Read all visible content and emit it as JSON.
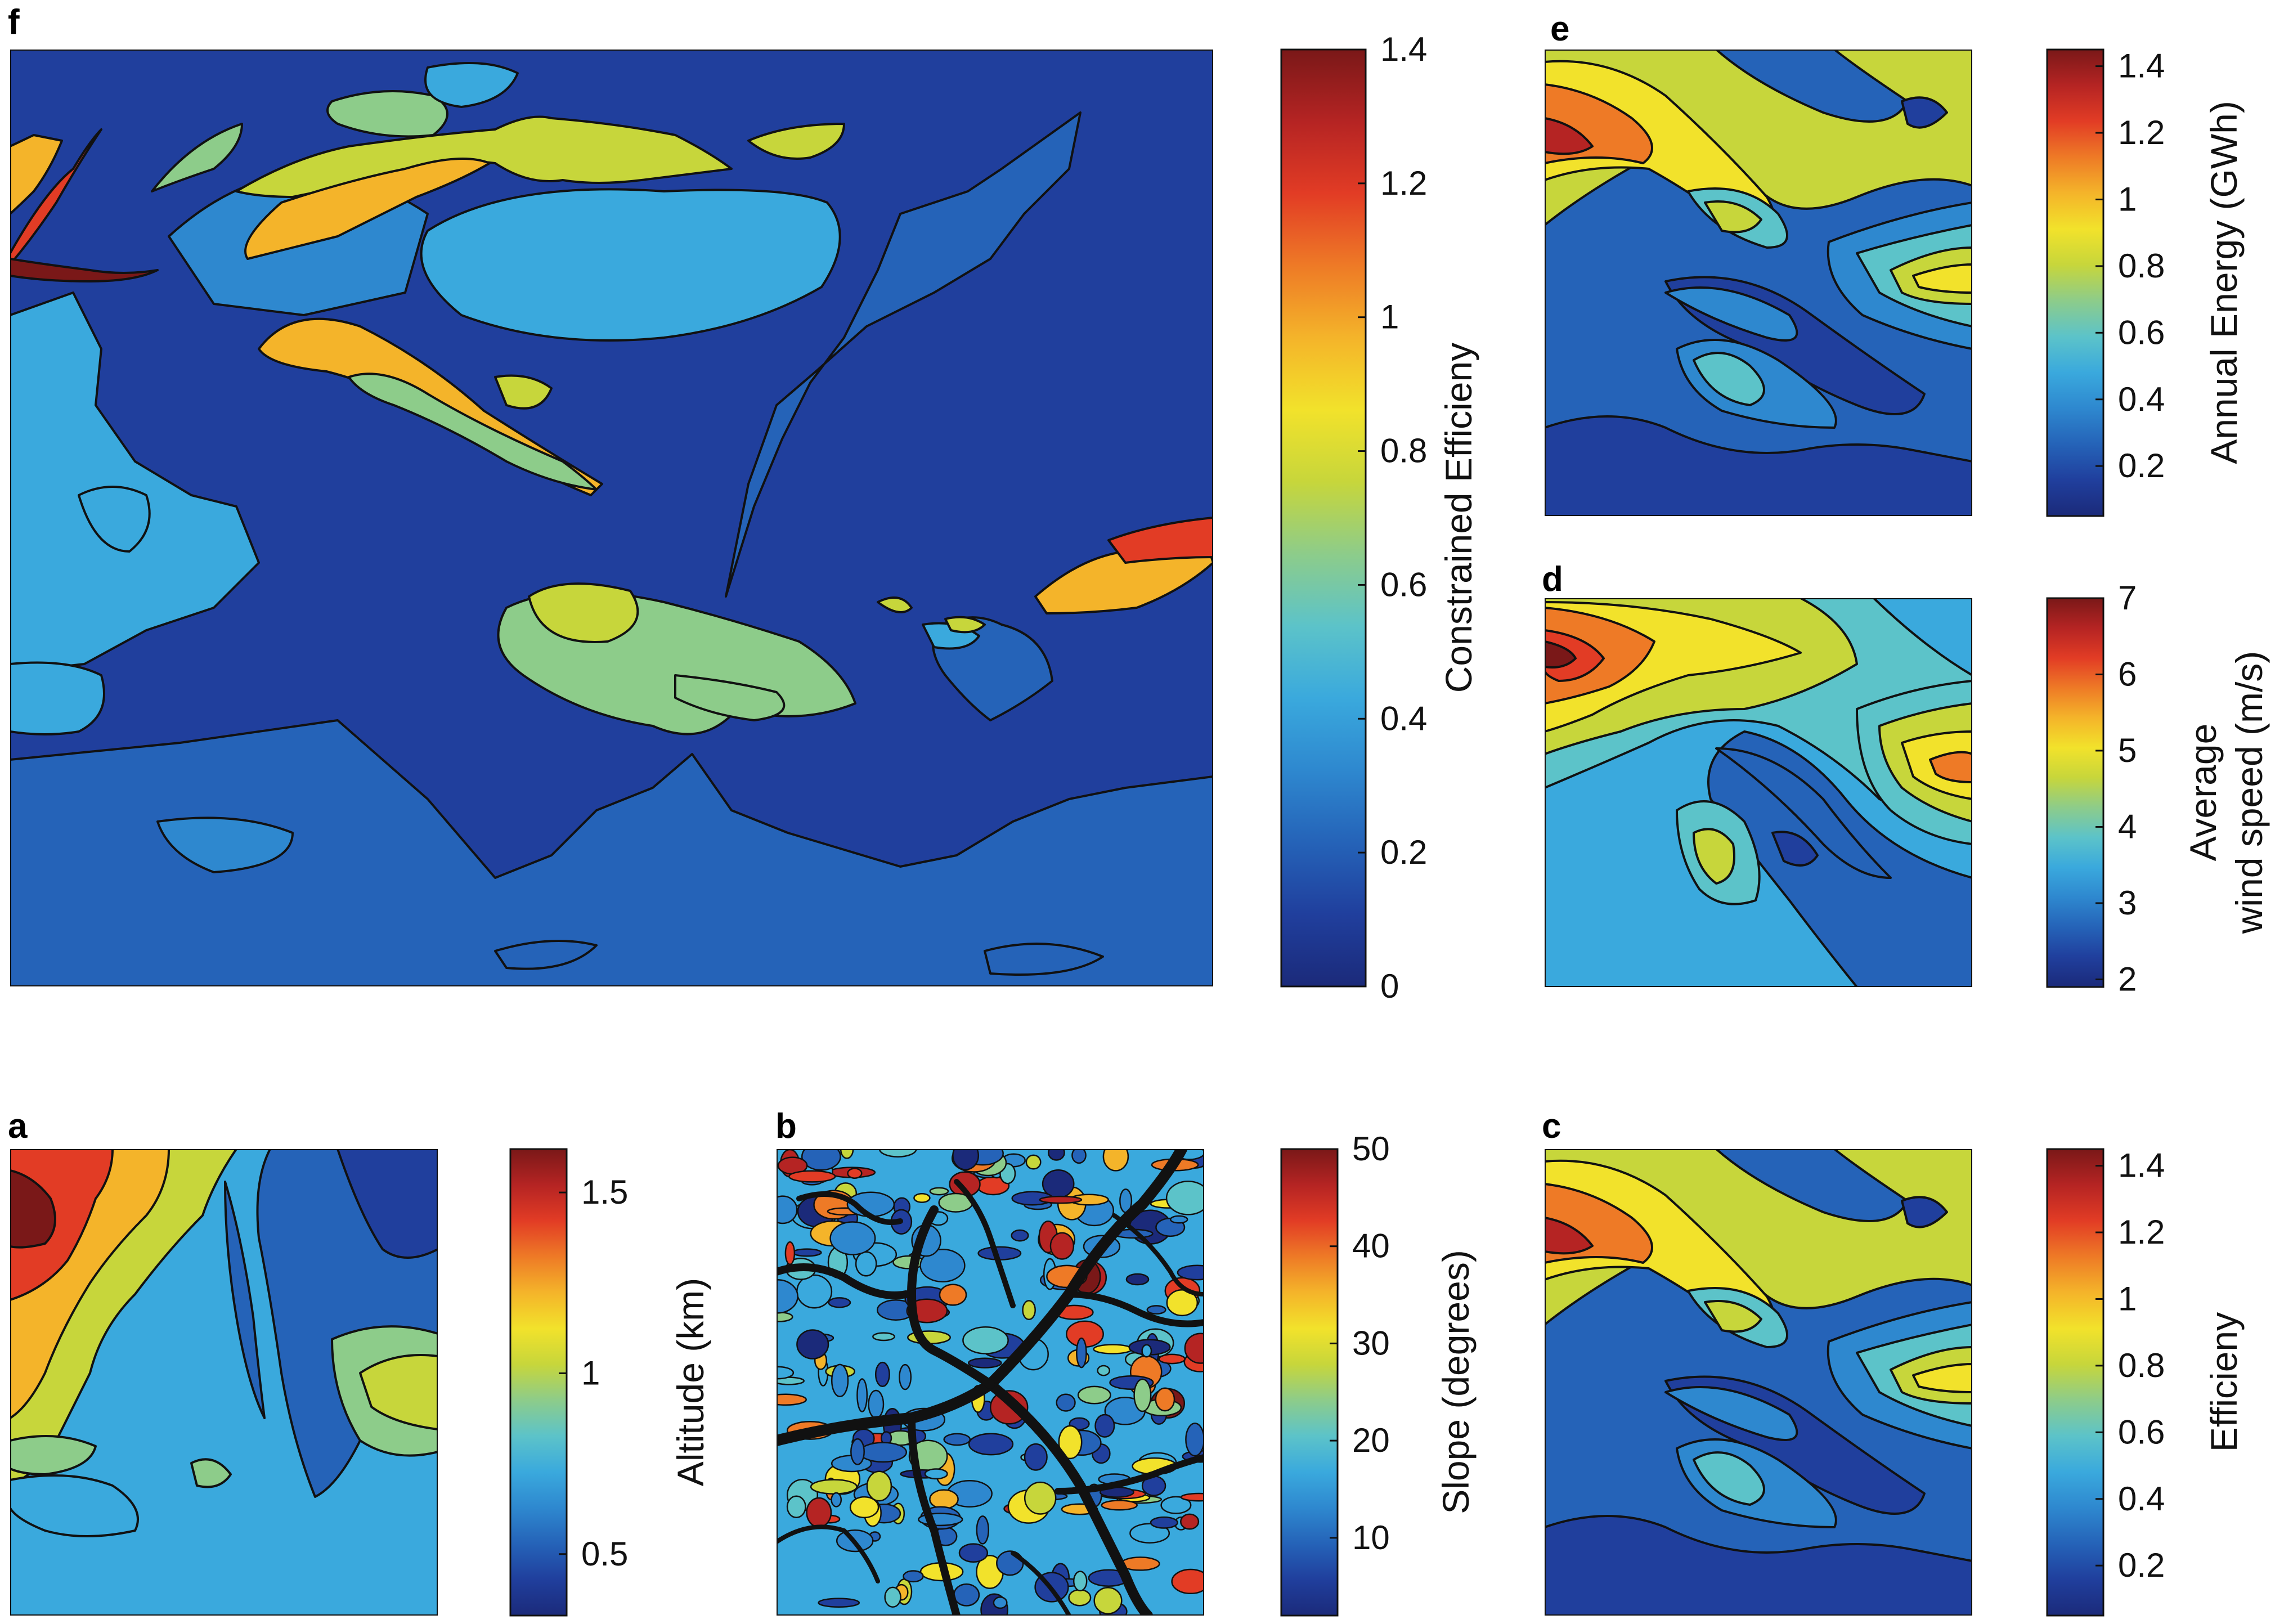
{
  "colormap": [
    "#1b2a7a",
    "#203f9d",
    "#2563b8",
    "#2e88cf",
    "#3aa9dd",
    "#5cc3c9",
    "#8dcc8a",
    "#c7d63b",
    "#f2e22b",
    "#f4b42a",
    "#ee7a26",
    "#e23c25",
    "#b52423",
    "#7a1818"
  ],
  "chart_data": [
    {
      "id": "f",
      "type": "heatmap",
      "panel_label": "f",
      "colorbar_label": "Constrained Efficieny",
      "colorbar_range": [
        0,
        1.4
      ],
      "colorbar_ticks": [
        {
          "value": 0,
          "label": "0"
        },
        {
          "value": 0.2,
          "label": "0.2"
        },
        {
          "value": 0.4,
          "label": "0.4"
        },
        {
          "value": 0.6,
          "label": "0.6"
        },
        {
          "value": 0.8,
          "label": "0.8"
        },
        {
          "value": 1,
          "label": "1"
        },
        {
          "value": 1.2,
          "label": "1.2"
        },
        {
          "value": 1.4,
          "label": "1.4"
        }
      ],
      "background_level": 0.06,
      "regions": [
        {
          "level": 0.22
        },
        {
          "level": 0.44
        },
        {
          "level": 0.3
        },
        {
          "level": 0.44
        },
        {
          "level": 0.22
        },
        {
          "level": 0.62
        },
        {
          "level": 0.8
        },
        {
          "level": 0.95
        },
        {
          "level": 1.22
        },
        {
          "level": 0.62
        },
        {
          "level": 0.8
        },
        {
          "level": 0.95
        },
        {
          "level": 0.8
        },
        {
          "level": 0.62
        },
        {
          "level": 0.44
        },
        {
          "level": 0.8
        },
        {
          "level": 0.95
        },
        {
          "level": 1.22
        },
        {
          "level": 0.22
        },
        {
          "level": 0.44
        },
        {
          "level": 0.95
        },
        {
          "level": 1.4
        },
        {
          "level": 0.62
        },
        {
          "level": 0.44
        },
        {
          "level": 0.8
        },
        {
          "level": 0.62
        },
        {
          "level": 0.22
        },
        {
          "level": 0.22
        },
        {
          "level": 0.44
        },
        {
          "level": 0.8
        },
        {
          "level": 0.3
        }
      ]
    },
    {
      "id": "e",
      "type": "heatmap",
      "panel_label": "e",
      "colorbar_label": "Annual Energy (GWh)",
      "colorbar_range": [
        0.05,
        1.45
      ],
      "colorbar_ticks": [
        {
          "value": 0.2,
          "label": "0.2"
        },
        {
          "value": 0.4,
          "label": "0.4"
        },
        {
          "value": 0.6,
          "label": "0.6"
        },
        {
          "value": 0.8,
          "label": "0.8"
        },
        {
          "value": 1,
          "label": "1"
        },
        {
          "value": 1.2,
          "label": "1.2"
        },
        {
          "value": 1.4,
          "label": "1.4"
        }
      ],
      "background_level": 0.28,
      "regions": [
        {
          "level": 0.12
        },
        {
          "level": 0.12
        },
        {
          "level": 0.4
        },
        {
          "level": 0.55
        },
        {
          "level": 0.75
        },
        {
          "level": 0.95
        },
        {
          "level": 1.15
        },
        {
          "level": 1.35
        },
        {
          "level": 0.4
        },
        {
          "level": 0.55
        },
        {
          "level": 0.75
        },
        {
          "level": 0.95
        },
        {
          "level": 0.4
        },
        {
          "level": 0.55
        },
        {
          "level": 0.75
        },
        {
          "level": 0.12
        }
      ]
    },
    {
      "id": "d",
      "type": "heatmap",
      "panel_label": "d",
      "colorbar_label_lines": [
        "Average",
        "wind speed (m/s)"
      ],
      "colorbar_range": [
        1.9,
        7.0
      ],
      "colorbar_ticks": [
        {
          "value": 2,
          "label": "2"
        },
        {
          "value": 3,
          "label": "3"
        },
        {
          "value": 4,
          "label": "4"
        },
        {
          "value": 5,
          "label": "5"
        },
        {
          "value": 6,
          "label": "6"
        },
        {
          "value": 7,
          "label": "7"
        }
      ],
      "background_level": 3.4,
      "regions": [
        {
          "level": 2.8
        },
        {
          "level": 4.0
        },
        {
          "level": 4.6
        },
        {
          "level": 5.2
        },
        {
          "level": 5.8
        },
        {
          "level": 6.4
        },
        {
          "level": 6.9
        },
        {
          "level": 4.0
        },
        {
          "level": 4.6
        },
        {
          "level": 5.2
        },
        {
          "level": 5.8
        },
        {
          "level": 4.0
        },
        {
          "level": 4.6
        },
        {
          "level": 2.8
        },
        {
          "level": 2.3
        }
      ]
    },
    {
      "id": "c",
      "type": "heatmap",
      "panel_label": "c",
      "colorbar_label": "Efficieny",
      "colorbar_range": [
        0.05,
        1.45
      ],
      "colorbar_ticks": [
        {
          "value": 0.2,
          "label": "0.2"
        },
        {
          "value": 0.4,
          "label": "0.4"
        },
        {
          "value": 0.6,
          "label": "0.6"
        },
        {
          "value": 0.8,
          "label": "0.8"
        },
        {
          "value": 1,
          "label": "1"
        },
        {
          "value": 1.2,
          "label": "1.2"
        },
        {
          "value": 1.4,
          "label": "1.4"
        }
      ],
      "background_level": 0.28,
      "regions": [
        {
          "level": 0.12
        },
        {
          "level": 0.12
        },
        {
          "level": 0.4
        },
        {
          "level": 0.55
        },
        {
          "level": 0.75
        },
        {
          "level": 0.95
        },
        {
          "level": 1.15
        },
        {
          "level": 1.35
        },
        {
          "level": 0.4
        },
        {
          "level": 0.55
        },
        {
          "level": 0.75
        },
        {
          "level": 0.95
        },
        {
          "level": 0.4
        },
        {
          "level": 0.55
        },
        {
          "level": 0.75
        },
        {
          "level": 0.12
        }
      ]
    },
    {
      "id": "a",
      "type": "heatmap",
      "panel_label": "a",
      "colorbar_label": "Altitude (km)",
      "colorbar_range": [
        0.33,
        1.62
      ],
      "colorbar_ticks": [
        {
          "value": 0.5,
          "label": "0.5"
        },
        {
          "value": 1,
          "label": "1"
        },
        {
          "value": 1.5,
          "label": "1.5"
        }
      ],
      "background_level": 0.72,
      "regions": [
        {
          "level": 0.55
        },
        {
          "level": 0.42
        },
        {
          "level": 0.55
        },
        {
          "level": 0.88
        },
        {
          "level": 1.05
        },
        {
          "level": 1.25
        },
        {
          "level": 1.45
        },
        {
          "level": 1.58
        },
        {
          "level": 0.72
        },
        {
          "level": 0.88
        },
        {
          "level": 1.05
        },
        {
          "level": 0.88
        }
      ]
    },
    {
      "id": "b",
      "type": "heatmap",
      "panel_label": "b",
      "colorbar_label": "Slope (degrees)",
      "colorbar_range": [
        2,
        50
      ],
      "colorbar_ticks": [
        {
          "value": 10,
          "label": "10"
        },
        {
          "value": 20,
          "label": "20"
        },
        {
          "value": 30,
          "label": "30"
        },
        {
          "value": 40,
          "label": "40"
        },
        {
          "value": 50,
          "label": "50"
        }
      ],
      "background_level": 16
    }
  ]
}
